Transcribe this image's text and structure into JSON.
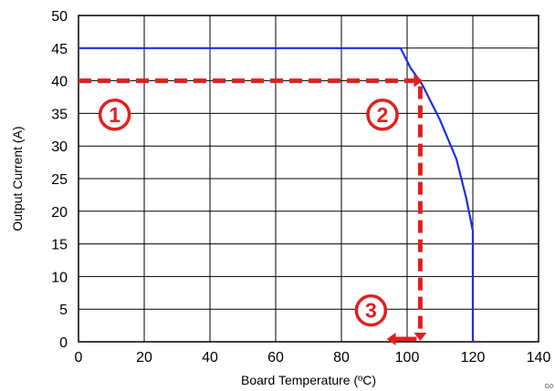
{
  "chart_data": {
    "type": "line",
    "xlabel": "Board Temperature (ºC)",
    "ylabel": "Output Current (A)",
    "xlim": [
      0,
      140
    ],
    "ylim": [
      0,
      50
    ],
    "x_ticks": [
      "0",
      "20",
      "40",
      "60",
      "80",
      "100",
      "120",
      "140"
    ],
    "y_ticks": [
      "0",
      "5",
      "10",
      "15",
      "20",
      "25",
      "30",
      "35",
      "40",
      "45",
      "50"
    ],
    "grid": true,
    "legend": "none",
    "corner_code": "G0",
    "series": [
      {
        "color": "#1f2ee6",
        "points": [
          {
            "x": 0,
            "y": 45
          },
          {
            "x": 98,
            "y": 45
          },
          {
            "x": 101,
            "y": 42
          },
          {
            "x": 104.5,
            "y": 39.5
          },
          {
            "x": 110,
            "y": 34
          },
          {
            "x": 115,
            "y": 28
          },
          {
            "x": 118,
            "y": 22
          },
          {
            "x": 120,
            "y": 17
          },
          {
            "x": 120,
            "y": 0
          }
        ]
      }
    ],
    "annotation": {
      "color": "#e02020",
      "current_level": 40,
      "temperature_level": 104,
      "markers": [
        {
          "label": "1",
          "x": 11,
          "y": 34.8
        },
        {
          "label": "2",
          "x": 92.5,
          "y": 34.8
        },
        {
          "label": "3",
          "x": 89,
          "y": 4.8
        }
      ]
    }
  }
}
